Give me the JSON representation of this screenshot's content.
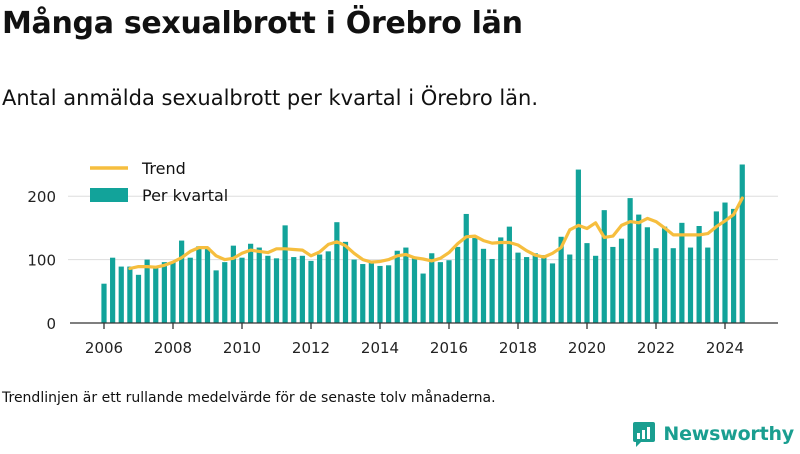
{
  "title": "Många sexualbrott i Örebro län",
  "subtitle": "Antal anmälda sexualbrott per kvartal i Örebro län.",
  "footnote": "Trendlinjen är ett rullande medelvärde för de senaste tolv månaderna.",
  "brand": {
    "name": "Newsworthy",
    "icon": "newsworthy-logo-icon"
  },
  "colors": {
    "bar": "#12a39a",
    "trend": "#f6be3e",
    "grid": "#dddddd",
    "axis": "#333333"
  },
  "chart_data": {
    "type": "bar",
    "ylim": [
      0,
      250
    ],
    "yticks": [
      0,
      100,
      200
    ],
    "xticks": [
      "2006",
      "2008",
      "2010",
      "2012",
      "2014",
      "2016",
      "2018",
      "2020",
      "2022",
      "2024"
    ],
    "grid": true,
    "legend": {
      "position": "top-left",
      "entries": [
        {
          "label": "Trend",
          "kind": "line"
        },
        {
          "label": "Per kvartal",
          "kind": "bar"
        }
      ]
    },
    "start_year": 2006,
    "series": [
      {
        "name": "Per kvartal",
        "values": [
          62,
          103,
          89,
          89,
          76,
          100,
          89,
          96,
          97,
          130,
          103,
          121,
          119,
          83,
          96,
          122,
          103,
          125,
          119,
          106,
          102,
          154,
          104,
          106,
          98,
          108,
          113,
          159,
          128,
          100,
          93,
          98,
          90,
          91,
          114,
          119,
          102,
          78,
          110,
          96,
          99,
          120,
          172,
          134,
          117,
          101,
          135,
          152,
          111,
          104,
          110,
          107,
          94,
          136,
          108,
          242,
          126,
          106,
          178,
          120,
          133,
          197,
          171,
          151,
          118,
          152,
          118,
          158,
          119,
          153,
          119,
          176,
          190,
          180,
          250
        ]
      },
      {
        "name": "Trend",
        "values": [
          null,
          null,
          null,
          86,
          89,
          89,
          88,
          91,
          96,
          103,
          113,
          119,
          119,
          106,
          100,
          102,
          110,
          115,
          113,
          111,
          117,
          117,
          116,
          115,
          106,
          112,
          124,
          128,
          122,
          110,
          100,
          96,
          97,
          100,
          106,
          108,
          103,
          101,
          98,
          102,
          111,
          125,
          136,
          137,
          130,
          126,
          127,
          127,
          123,
          114,
          107,
          104,
          110,
          119,
          147,
          154,
          149,
          158,
          135,
          137,
          154,
          160,
          158,
          165,
          160,
          150,
          139,
          139,
          139,
          139,
          141,
          152,
          161,
          171,
          197
        ]
      }
    ]
  }
}
